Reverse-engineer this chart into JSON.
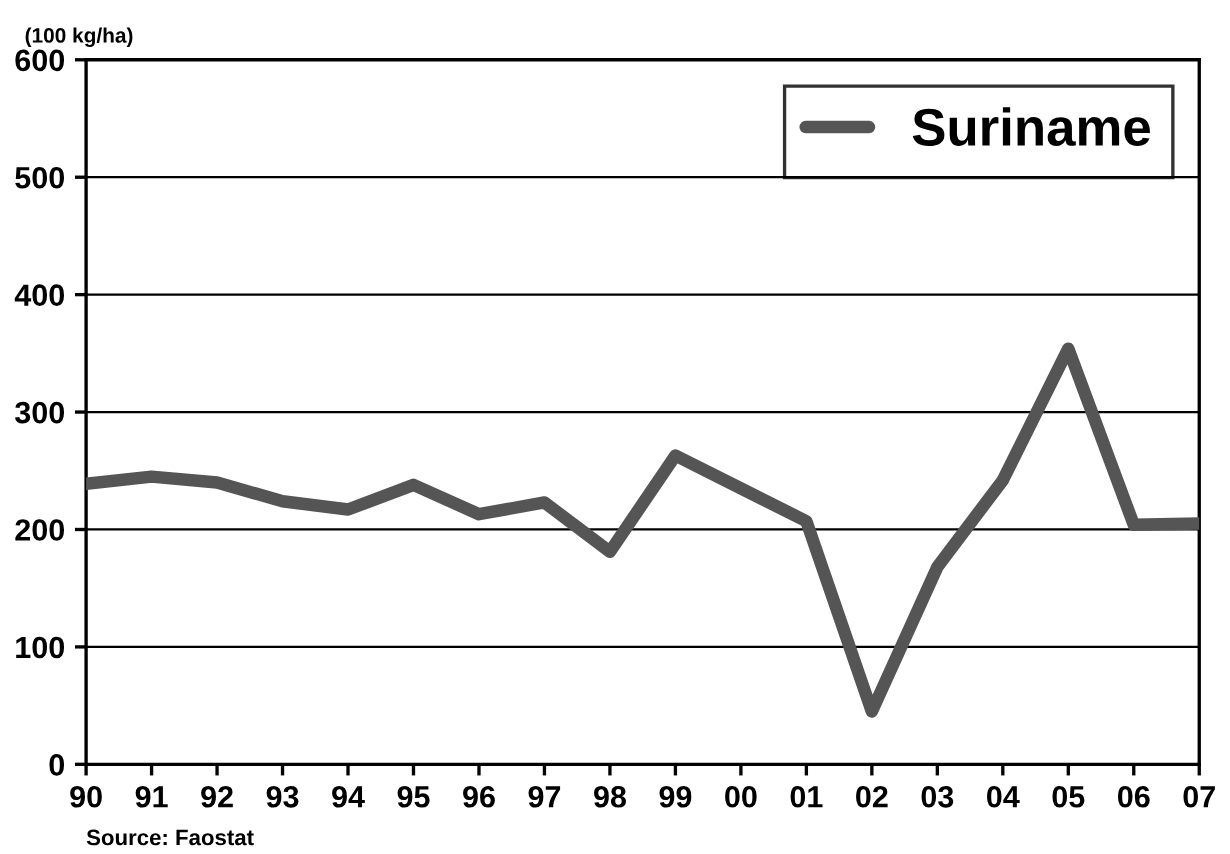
{
  "chart_data": {
    "type": "line",
    "ylabel": "(100 kg/ha)",
    "annotations": [
      "Source: Faostat"
    ],
    "categories": [
      "90",
      "91",
      "92",
      "93",
      "94",
      "95",
      "96",
      "97",
      "98",
      "99",
      "00",
      "01",
      "02",
      "03",
      "04",
      "05",
      "06",
      "07"
    ],
    "series": [
      {
        "name": "Suriname",
        "color": "#555555",
        "values": [
          239,
          245,
          240,
          224,
          217,
          238,
          213,
          223,
          181,
          263,
          235,
          207,
          45,
          168,
          242,
          354,
          204,
          205
        ]
      }
    ],
    "ylim": [
      0,
      600
    ],
    "yticks": [
      0,
      100,
      200,
      300,
      400,
      500,
      600
    ],
    "grid": "y",
    "legend": "top right",
    "line_style": "solid",
    "marker": "none"
  }
}
